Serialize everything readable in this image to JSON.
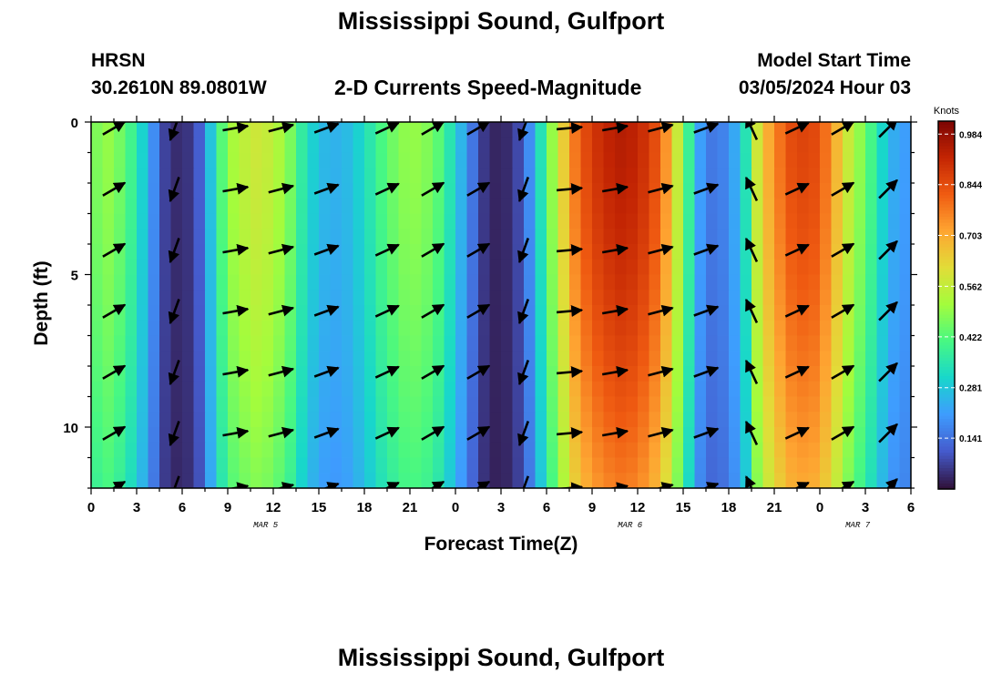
{
  "header": {
    "title": "Mississippi Sound, Gulfport",
    "model": "HRSN",
    "location": "30.2610N  89.0801W",
    "subtitle": "2-D Currents Speed-Magnitude",
    "start_label": "Model Start Time",
    "start_value": "03/05/2024 Hour 03"
  },
  "footer": {
    "title": "Mississippi Sound, Gulfport"
  },
  "chart_data": {
    "type": "heatmap",
    "xlabel": "Forecast Time(Z)",
    "ylabel": "Depth (ft)",
    "x_tick_labels": [
      "0",
      "3",
      "6",
      "9",
      "12",
      "15",
      "18",
      "21",
      "0",
      "3",
      "6",
      "9",
      "12",
      "15",
      "18",
      "21",
      "0",
      "3",
      "6"
    ],
    "date_labels": [
      {
        "label": "MAR 5",
        "hour": 11.5
      },
      {
        "label": "MAR 6",
        "hour": 35.5
      },
      {
        "label": "MAR 7",
        "hour": 50.5
      }
    ],
    "y_tick_labels": [
      "0",
      "5",
      "10"
    ],
    "y_ticks": [
      0,
      5,
      10
    ],
    "ylim": [
      0,
      12
    ],
    "y_inverted": true,
    "xlim_hours": [
      0,
      54
    ],
    "colorbar": {
      "title": "Knots",
      "ticks": [
        "0.984",
        "0.844",
        "0.703",
        "0.562",
        "0.422",
        "0.281",
        "0.141"
      ],
      "range": [
        0,
        1.02
      ],
      "colormap": "turbo"
    },
    "speed_profile_hours": [
      0,
      1,
      2,
      3,
      4,
      5,
      6,
      7,
      8,
      9,
      10,
      11,
      12,
      13,
      14,
      15,
      16,
      17,
      18,
      19,
      20,
      21,
      22,
      23,
      24,
      25,
      26,
      27,
      28,
      29,
      30,
      31,
      32,
      33,
      34,
      35,
      36,
      37,
      38,
      39,
      40,
      41,
      42,
      43,
      44,
      45,
      46,
      47,
      48,
      49,
      50,
      51,
      52,
      53,
      54
    ],
    "speed_knots": [
      0.45,
      0.5,
      0.45,
      0.36,
      0.2,
      0.05,
      0.03,
      0.08,
      0.3,
      0.5,
      0.55,
      0.58,
      0.55,
      0.48,
      0.35,
      0.26,
      0.24,
      0.26,
      0.32,
      0.4,
      0.46,
      0.5,
      0.48,
      0.42,
      0.3,
      0.16,
      0.04,
      0.02,
      0.06,
      0.2,
      0.42,
      0.62,
      0.8,
      0.88,
      0.92,
      0.94,
      0.92,
      0.86,
      0.72,
      0.48,
      0.22,
      0.14,
      0.18,
      0.3,
      0.62,
      0.75,
      0.84,
      0.86,
      0.84,
      0.7,
      0.55,
      0.45,
      0.32,
      0.22,
      0.2
    ],
    "vector_times_hours": [
      1.5,
      5.5,
      9.5,
      12.5,
      15.5,
      19.5,
      22.5,
      25.5,
      28.5,
      31.5,
      34.5,
      37.5,
      40.5,
      43.5,
      46.5,
      49.5,
      52.5
    ],
    "vector_direction_deg": [
      60,
      200,
      80,
      75,
      70,
      65,
      60,
      60,
      200,
      85,
      80,
      75,
      70,
      335,
      65,
      60,
      45
    ]
  }
}
